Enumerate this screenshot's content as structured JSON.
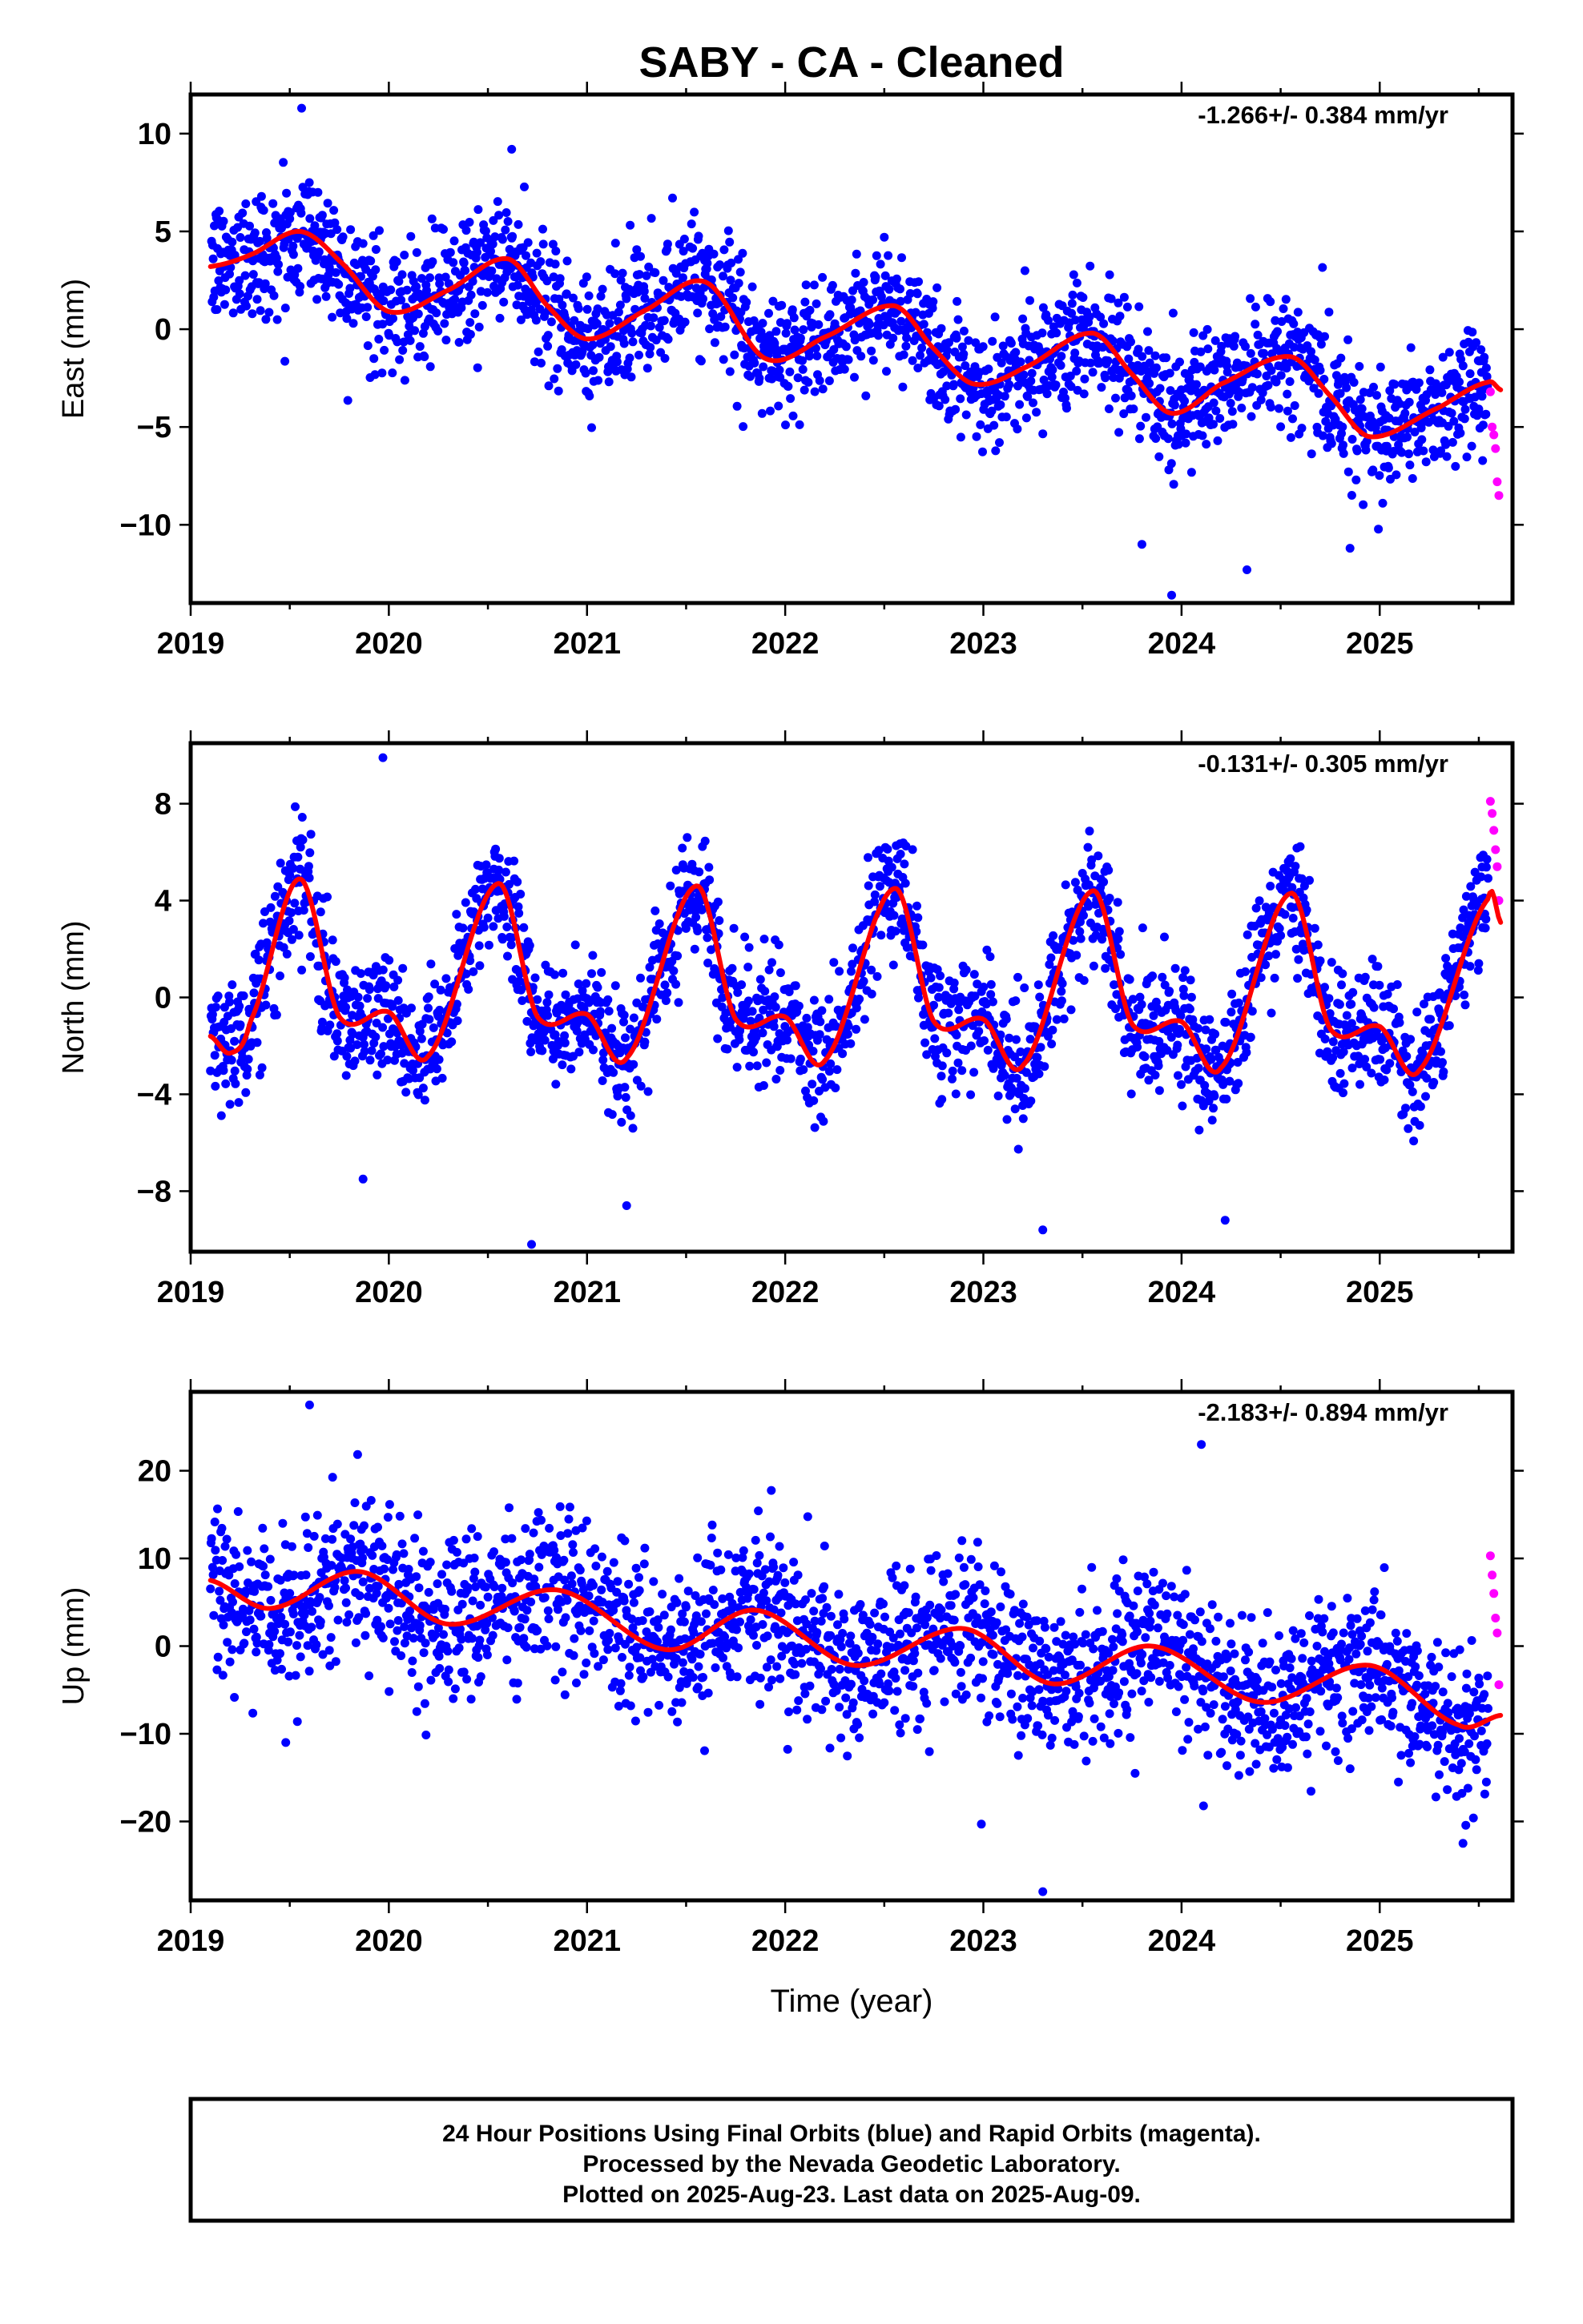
{
  "colors": {
    "final_orbits": "#0000ff",
    "rapid_orbits": "#ff00ff",
    "model_fit": "#ff0000",
    "axes": "#000000"
  },
  "chart_data": {
    "type": "scatter",
    "title": "SABY  - CA - Cleaned",
    "xlabel": "Time (year)",
    "x_ticks": [
      "2019",
      "2020",
      "2021",
      "2022",
      "2023",
      "2024",
      "2025"
    ],
    "xlim": [
      2019.0,
      2025.67
    ],
    "note_lines": [
      "24 Hour Positions Using Final Orbits (blue) and Rapid Orbits (magenta).",
      "Processed by the Nevada Geodetic Laboratory.",
      "Plotted on 2025-Aug-23. Last data on 2025-Aug-09."
    ],
    "panels": [
      {
        "component": "east",
        "ylabel": "East (mm)",
        "rate": "-1.266+/- 0.384 mm/yr",
        "ylim": [
          -14,
          12
        ],
        "y_ticks": [
          10,
          5,
          0,
          -5,
          -10
        ],
        "data_start": 2019.1,
        "final_end": 2025.55,
        "rapid_end": 2025.61,
        "fit": {
          "x": [
            2019.1,
            2019.3,
            2019.55,
            2019.75,
            2020.0,
            2020.3,
            2020.6,
            2020.8,
            2021.0,
            2021.3,
            2021.6,
            2021.9,
            2022.2,
            2022.55,
            2022.75,
            2022.95,
            2023.2,
            2023.55,
            2023.75,
            2023.95,
            2024.2,
            2024.55,
            2024.75,
            2024.95,
            2025.3,
            2025.55,
            2025.61
          ],
          "y": [
            3.2,
            3.8,
            5.0,
            3.5,
            0.9,
            2.0,
            3.6,
            1.2,
            -0.5,
            1.0,
            2.4,
            -1.5,
            -0.4,
            1.2,
            -1.0,
            -2.8,
            -2.0,
            -0.2,
            -2.3,
            -4.3,
            -2.8,
            -1.4,
            -3.4,
            -5.5,
            -4.0,
            -2.7,
            -3.1
          ]
        },
        "noise_sd": 1.6,
        "outliers": [
          [
            2019.56,
            11.3
          ],
          [
            2020.62,
            9.2
          ],
          [
            2023.95,
            -13.6
          ],
          [
            2024.33,
            -12.3
          ],
          [
            2023.8,
            -11.0
          ],
          [
            2024.85,
            -11.2
          ]
        ],
        "rapid_values": [
          -3.2,
          -5.0,
          -5.4,
          -6.1,
          -7.8,
          -8.5
        ]
      },
      {
        "component": "north",
        "ylabel": "North (mm)",
        "rate": "-0.131+/- 0.305 mm/yr",
        "ylim": [
          -10.5,
          10.5
        ],
        "y_ticks": [
          8,
          4,
          0,
          -4,
          -8
        ],
        "data_start": 2019.1,
        "final_end": 2025.55,
        "rapid_end": 2025.61,
        "fit": {
          "x": [
            2019.1,
            2019.2,
            2019.3,
            2019.55,
            2019.75,
            2020.0,
            2020.2,
            2020.55,
            2020.75,
            2021.0,
            2021.2,
            2021.55,
            2021.75,
            2022.0,
            2022.2,
            2022.55,
            2022.75,
            2023.0,
            2023.2,
            2023.55,
            2023.75,
            2024.0,
            2024.2,
            2024.55,
            2024.75,
            2025.0,
            2025.2,
            2025.55,
            2025.61
          ],
          "y": [
            -1.6,
            -2.3,
            -1.0,
            4.9,
            -0.8,
            -0.6,
            -2.4,
            4.7,
            -0.8,
            -0.7,
            -2.5,
            4.6,
            -0.9,
            -0.8,
            -2.6,
            4.5,
            -1.0,
            -0.9,
            -2.8,
            4.4,
            -1.1,
            -1.0,
            -2.9,
            4.3,
            -1.3,
            -1.2,
            -3.0,
            4.1,
            3.1
          ]
        },
        "noise_sd": 1.3,
        "outliers": [
          [
            2019.97,
            9.9
          ],
          [
            2020.72,
            -10.2
          ],
          [
            2021.2,
            -8.6
          ],
          [
            2023.3,
            -9.6
          ],
          [
            2019.87,
            -7.5
          ],
          [
            2024.22,
            -9.2
          ]
        ],
        "rapid_values": [
          8.1,
          7.6,
          6.9,
          6.1,
          5.4,
          4.0
        ]
      },
      {
        "component": "up",
        "ylabel": "Up (mm)",
        "rate": "-2.183+/- 0.894 mm/yr",
        "ylim": [
          -29,
          29
        ],
        "y_ticks": [
          20,
          10,
          0,
          -10,
          -20
        ],
        "data_start": 2019.1,
        "final_end": 2025.55,
        "rapid_end": 2025.61,
        "fit": {
          "x": [
            2019.1,
            2019.4,
            2019.85,
            2020.3,
            2020.85,
            2021.4,
            2021.85,
            2022.35,
            2022.9,
            2023.35,
            2023.85,
            2024.4,
            2024.95,
            2025.4,
            2025.61
          ],
          "y": [
            7.5,
            4.3,
            8.5,
            2.5,
            6.4,
            -0.4,
            4.1,
            -2.2,
            2.0,
            -4.3,
            0.0,
            -6.4,
            -2.2,
            -9.0,
            -7.9
          ]
        },
        "noise_sd": 4.5,
        "outliers": [
          [
            2019.6,
            27.5
          ],
          [
            2024.1,
            23.0
          ],
          [
            2023.3,
            -28.0
          ],
          [
            2025.42,
            -22.5
          ],
          [
            2019.48,
            -11.0
          ],
          [
            2022.99,
            -20.3
          ]
        ],
        "rapid_values": [
          10.3,
          8.1,
          6.0,
          3.2,
          1.5,
          -4.4
        ]
      }
    ]
  }
}
